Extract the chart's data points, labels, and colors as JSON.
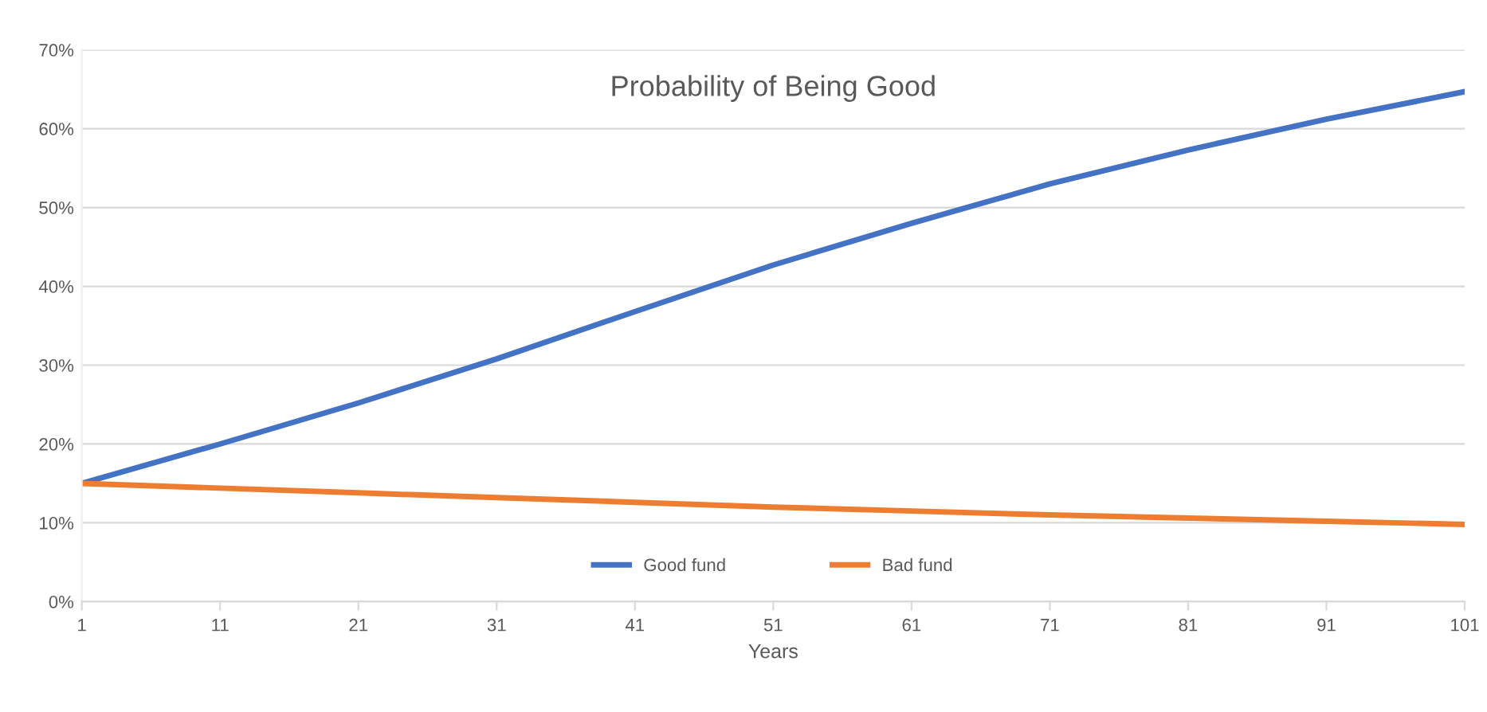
{
  "chart_data": {
    "type": "line",
    "title": "Probability of Being Good",
    "xlabel": "Years",
    "x": [
      1,
      11,
      21,
      31,
      41,
      51,
      61,
      71,
      81,
      91,
      101
    ],
    "series": [
      {
        "name": "Good fund",
        "color": "#4472c4",
        "values": [
          15,
          20,
          25.2,
          30.8,
          36.8,
          42.7,
          48,
          53,
          57.3,
          61.2,
          64.7
        ]
      },
      {
        "name": "Bad fund",
        "color": "#ed7d31",
        "values": [
          15,
          14.4,
          13.8,
          13.2,
          12.6,
          12.0,
          11.5,
          11.0,
          10.6,
          10.2,
          9.8
        ]
      }
    ],
    "xlim": [
      1,
      101
    ],
    "xticks": [
      1,
      11,
      21,
      31,
      41,
      51,
      61,
      71,
      81,
      91,
      101
    ],
    "ylim": [
      0,
      70
    ],
    "yticks": [
      {
        "value": 0,
        "label": "0%"
      },
      {
        "value": 10,
        "label": "10%"
      },
      {
        "value": 20,
        "label": "20%"
      },
      {
        "value": 30,
        "label": "30%"
      },
      {
        "value": 40,
        "label": "40%"
      },
      {
        "value": 50,
        "label": "50%"
      },
      {
        "value": 60,
        "label": "60%"
      },
      {
        "value": 70,
        "label": "70%"
      }
    ],
    "grid": "y",
    "legend": "bottom",
    "marker": "none",
    "line_style": "solid"
  }
}
